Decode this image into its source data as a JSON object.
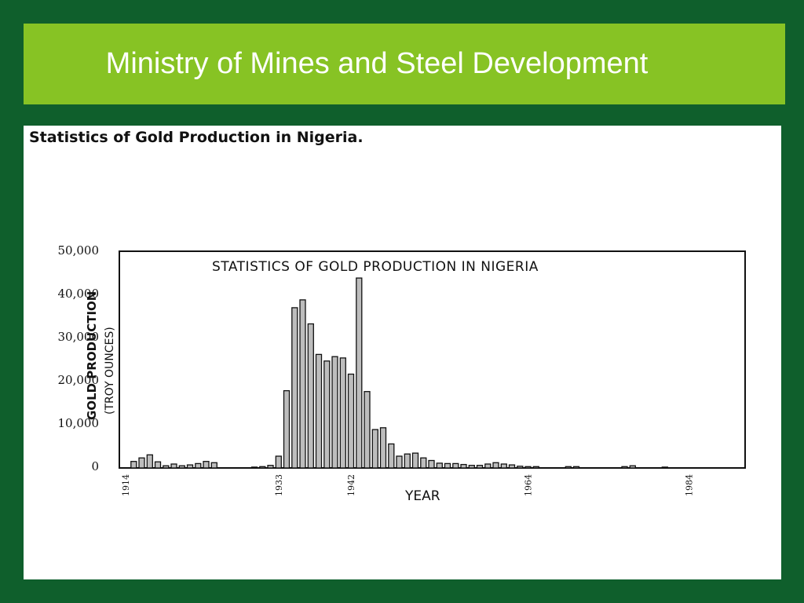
{
  "header": {
    "title": "Ministry of Mines and Steel Development"
  },
  "content": {
    "subtitle": "Statistics of Gold Production in Nigeria."
  },
  "colors": {
    "border": "#0f5f2c",
    "header_bg": "#87c324",
    "bar_fill": "#bdbdbd"
  },
  "chart_data": {
    "type": "bar",
    "title": "STATISTICS OF GOLD PRODUCTION IN NIGERIA",
    "xlabel": "YEAR",
    "ylabel": "GOLD PRODUCTION",
    "ylabel_sub": "(TROY OUNCES)",
    "ylim": [
      0,
      50000
    ],
    "yticks": [
      "50,000",
      "40,000",
      "30,000",
      "20,000",
      "10,000",
      "0"
    ],
    "xticks": [
      "1914",
      "1933",
      "1942",
      "1964",
      "1984"
    ],
    "grid": false,
    "x": [
      1915,
      1916,
      1917,
      1918,
      1919,
      1920,
      1921,
      1922,
      1923,
      1924,
      1925,
      1926,
      1927,
      1928,
      1929,
      1930,
      1931,
      1932,
      1933,
      1934,
      1935,
      1936,
      1937,
      1938,
      1939,
      1940,
      1941,
      1942,
      1943,
      1944,
      1945,
      1946,
      1947,
      1948,
      1949,
      1950,
      1951,
      1952,
      1953,
      1954,
      1955,
      1956,
      1957,
      1958,
      1959,
      1960,
      1961,
      1962,
      1963,
      1964,
      1965,
      1966,
      1967,
      1968,
      1969,
      1970,
      1971,
      1972,
      1973,
      1974,
      1975,
      1976,
      1977,
      1978,
      1979,
      1980,
      1981,
      1982,
      1983,
      1984
    ],
    "values": [
      1500,
      2300,
      3000,
      1400,
      500,
      900,
      500,
      700,
      1000,
      1500,
      1200,
      0,
      0,
      0,
      0,
      200,
      300,
      600,
      2700,
      17700,
      36700,
      38500,
      33000,
      26000,
      24500,
      25500,
      25200,
      21500,
      43500,
      17500,
      8800,
      9200,
      5500,
      2700,
      3200,
      3400,
      2300,
      1700,
      1100,
      1000,
      1000,
      800,
      600,
      600,
      900,
      1200,
      900,
      700,
      400,
      300,
      300,
      0,
      0,
      0,
      300,
      300,
      0,
      0,
      0,
      0,
      0,
      300,
      500,
      0,
      0,
      0,
      200,
      0,
      0,
      0
    ]
  }
}
